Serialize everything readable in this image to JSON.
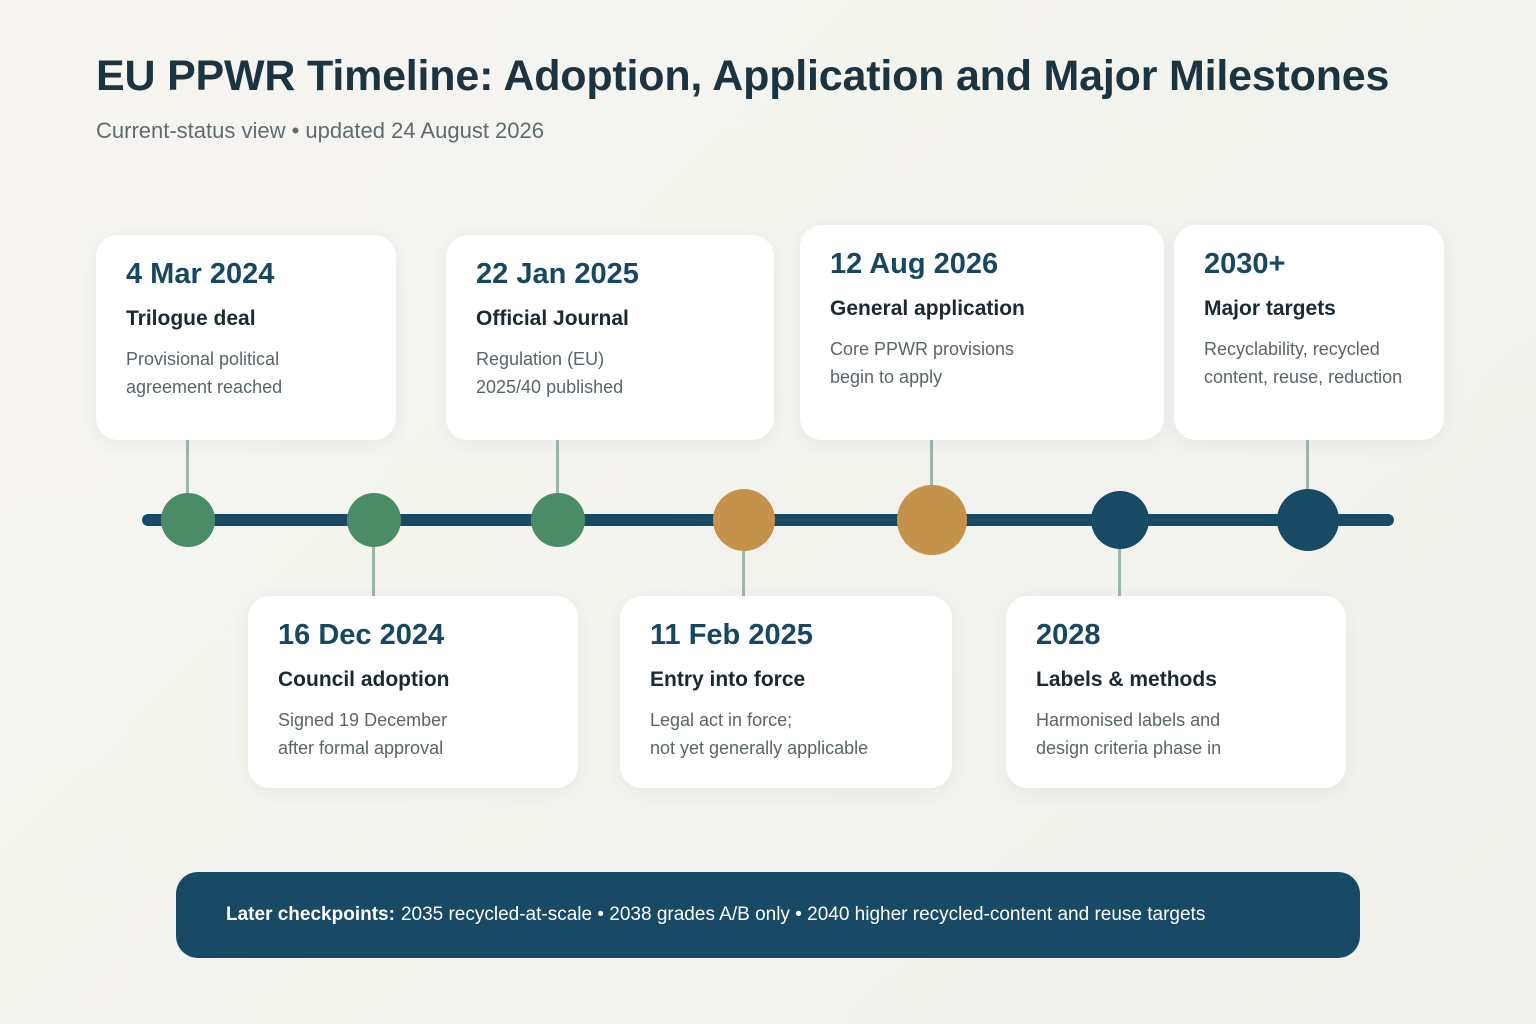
{
  "header": {
    "title": "EU PPWR Timeline: Adoption, Application and Major Milestones",
    "subtitle": "Current-status view • updated 24 August 2026"
  },
  "colors": {
    "completed": "#4a8c67",
    "current": "#c4924a",
    "future": "#184a66",
    "axis": "#184a66",
    "connector": "#9db5ab"
  },
  "milestones": [
    {
      "date": "4 Mar 2024",
      "name": "Trilogue deal",
      "desc": [
        "Provisional political",
        "agreement reached"
      ],
      "status": "completed"
    },
    {
      "date": "16 Dec 2024",
      "name": "Council adoption",
      "desc": [
        "Signed 19 December",
        "after formal approval"
      ],
      "status": "completed"
    },
    {
      "date": "22 Jan 2025",
      "name": "Official Journal",
      "desc": [
        "Regulation (EU)",
        "2025/40 published"
      ],
      "status": "completed"
    },
    {
      "date": "11 Feb 2025",
      "name": "Entry into force",
      "desc": [
        "Legal act in force;",
        "not yet generally applicable"
      ],
      "status": "current"
    },
    {
      "date": "12 Aug 2026",
      "name": "General application",
      "desc": [
        "Core PPWR provisions",
        "begin to apply"
      ],
      "status": "current"
    },
    {
      "date": "2028",
      "name": "Labels & methods",
      "desc": [
        "Harmonised labels and",
        "design criteria phase in"
      ],
      "status": "future"
    },
    {
      "date": "2030+",
      "name": "Major targets",
      "desc": [
        "Recyclability, recycled",
        "content, reuse, reduction"
      ],
      "status": "future"
    }
  ],
  "banner": {
    "label": "Later checkpoints:",
    "text": "2035 recycled-at-scale • 2038 grades A/B only • 2040 higher recycled-content and reuse targets"
  }
}
